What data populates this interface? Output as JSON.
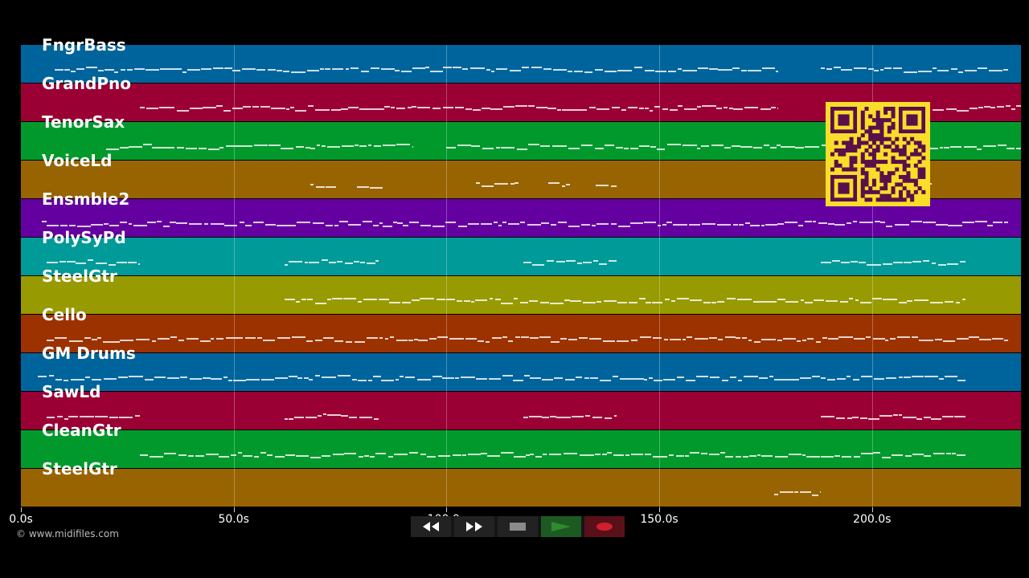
{
  "app": {
    "copyright": "© www.midifiles.com",
    "qr_icon": "qr-code-icon",
    "qr_colors": {
      "background": "#f8dd2a",
      "modules": "#5a0f4a"
    }
  },
  "timeline": {
    "duration_seconds": 235,
    "ticks": [
      {
        "seconds": 0,
        "label": "0.0s"
      },
      {
        "seconds": 50,
        "label": "50.0s"
      },
      {
        "seconds": 100,
        "label": "100.0s"
      },
      {
        "seconds": 150,
        "label": "150.0s"
      },
      {
        "seconds": 200,
        "label": "200.0s"
      }
    ]
  },
  "tracks": [
    {
      "name": "FngrBass",
      "color": "#00649c"
    },
    {
      "name": "GrandPno",
      "color": "#9a0034"
    },
    {
      "name": "TenorSax",
      "color": "#02992c"
    },
    {
      "name": "VoiceLd",
      "color": "#986402"
    },
    {
      "name": "Ensmble2",
      "color": "#6400a0"
    },
    {
      "name": "PolySyPd",
      "color": "#009a98"
    },
    {
      "name": "SteelGtr",
      "color": "#989a02"
    },
    {
      "name": "Cello",
      "color": "#9c3200"
    },
    {
      "name": "GM Drums",
      "color": "#00649c"
    },
    {
      "name": "SawLd",
      "color": "#9a0034"
    },
    {
      "name": "CleanGtr",
      "color": "#02992c"
    },
    {
      "name": "SteelGtr",
      "color": "#986402"
    }
  ],
  "transport": {
    "rewind_icon": "rewind-icon",
    "fast_forward_icon": "fast-forward-icon",
    "stop_icon": "stop-icon",
    "play_icon": "play-icon",
    "record_icon": "record-icon",
    "colors": {
      "stop": "#8a8a8a",
      "play": "#2e8b2e",
      "record": "#d02030"
    }
  }
}
